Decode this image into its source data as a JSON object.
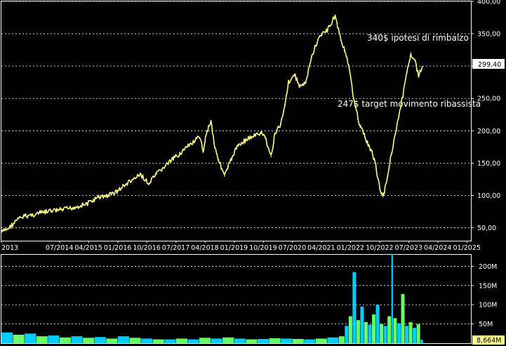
{
  "chart_data": [
    {
      "type": "line",
      "panel": "price",
      "background": "#000000",
      "line_color": "#ffff66",
      "grid": true,
      "grid_style": "dashed white horizontal",
      "ylim": [
        30,
        400
      ],
      "y_ticks": [
        "400,00",
        "350,00",
        "300,00",
        "250,00",
        "200,00",
        "150,00",
        "100,00",
        "50,00"
      ],
      "y_tick_values": [
        400,
        350,
        300,
        250,
        200,
        150,
        100,
        50
      ],
      "x_tick_labels": [
        "2013",
        "07/2014",
        "04/2015",
        "01/2016",
        "10/2016",
        "07/2017",
        "04/2018",
        "01/2019",
        "10/2019",
        "07/2020",
        "04/2021",
        "01/2022",
        "10/2022",
        "07/2023",
        "04/2024",
        "01/2025"
      ],
      "x_tick_values": [
        2013.0,
        2014.5,
        2015.25,
        2016.0,
        2016.75,
        2017.5,
        2018.25,
        2019.0,
        2019.75,
        2020.5,
        2021.25,
        2022.0,
        2022.75,
        2023.5,
        2024.25,
        2025.0
      ],
      "xlim": [
        2013.0,
        2025.1
      ],
      "last_value_label": "299,40",
      "last_value": 299.4,
      "annotations": [
        {
          "text": "340$ ipotesi di rimbalzo",
          "value": 340
        },
        {
          "text": "247$ target movimento ribassista",
          "value": 247
        }
      ],
      "x": [
        2013.0,
        2013.2,
        2013.4,
        2013.6,
        2013.8,
        2014.0,
        2014.3,
        2014.6,
        2014.9,
        2015.2,
        2015.5,
        2015.75,
        2016.0,
        2016.2,
        2016.4,
        2016.6,
        2016.8,
        2016.85,
        2017.0,
        2017.3,
        2017.6,
        2017.9,
        2018.1,
        2018.2,
        2018.3,
        2018.4,
        2018.5,
        2018.6,
        2018.75,
        2018.85,
        2018.95,
        2019.1,
        2019.3,
        2019.5,
        2019.7,
        2019.8,
        2019.95,
        2020.05,
        2020.2,
        2020.3,
        2020.4,
        2020.55,
        2020.7,
        2020.85,
        2021.0,
        2021.1,
        2021.25,
        2021.4,
        2021.6,
        2021.75,
        2021.85,
        2021.95,
        2022.05,
        2022.15,
        2022.25,
        2022.35,
        2022.45,
        2022.55,
        2022.65,
        2022.75,
        2022.85,
        2022.95,
        2023.05,
        2023.15,
        2023.25,
        2023.35,
        2023.45,
        2023.55,
        2023.65,
        2023.75,
        2023.85
      ],
      "values": [
        43,
        50,
        62,
        68,
        70,
        73,
        76,
        78,
        82,
        87,
        97,
        100,
        107,
        117,
        125,
        132,
        117,
        122,
        133,
        150,
        165,
        180,
        190,
        170,
        200,
        215,
        175,
        155,
        130,
        145,
        160,
        178,
        186,
        192,
        196,
        190,
        160,
        195,
        210,
        240,
        275,
        287,
        268,
        275,
        315,
        332,
        350,
        355,
        378,
        340,
        325,
        300,
        260,
        232,
        205,
        195,
        178,
        168,
        145,
        110,
        100,
        130,
        165,
        195,
        225,
        255,
        290,
        320,
        310,
        285,
        299.4
      ]
    },
    {
      "type": "bar",
      "panel": "volume",
      "series_colors": [
        "#00ccff",
        "#66ff66"
      ],
      "grid": true,
      "ylim": [
        0,
        230
      ],
      "y_ticks": [
        "200M",
        "150M",
        "100M",
        "50M"
      ],
      "y_tick_values": [
        200,
        150,
        100,
        50
      ],
      "y_unit": "M",
      "last_value_label": "8,664M",
      "x": [
        2013.0,
        2013.3,
        2013.6,
        2013.9,
        2014.2,
        2014.5,
        2014.8,
        2015.1,
        2015.4,
        2015.7,
        2016.0,
        2016.3,
        2016.6,
        2016.9,
        2017.2,
        2017.5,
        2017.8,
        2018.1,
        2018.4,
        2018.7,
        2019.0,
        2019.3,
        2019.6,
        2019.9,
        2020.2,
        2020.5,
        2020.8,
        2021.1,
        2021.4,
        2021.7,
        2021.85,
        2021.95,
        2022.05,
        2022.15,
        2022.25,
        2022.35,
        2022.45,
        2022.55,
        2022.65,
        2022.75,
        2022.85,
        2022.95,
        2023.05,
        2023.1,
        2023.2,
        2023.3,
        2023.4,
        2023.5,
        2023.6,
        2023.7,
        2023.8
      ],
      "values": [
        28,
        22,
        25,
        18,
        20,
        15,
        18,
        14,
        16,
        12,
        18,
        14,
        12,
        10,
        10,
        12,
        10,
        14,
        12,
        15,
        12,
        10,
        11,
        13,
        12,
        11,
        10,
        12,
        15,
        18,
        45,
        70,
        185,
        60,
        95,
        55,
        48,
        75,
        100,
        50,
        45,
        70,
        232,
        65,
        52,
        128,
        45,
        55,
        40,
        50,
        9
      ]
    }
  ]
}
